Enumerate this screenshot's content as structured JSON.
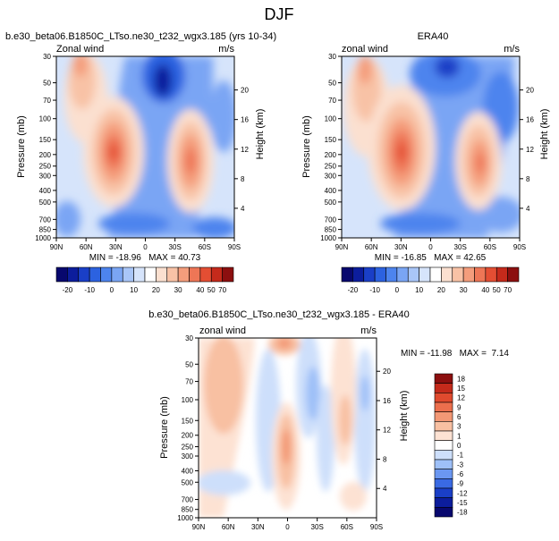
{
  "page": {
    "title": "DJF"
  },
  "colors": {
    "wind_scale": [
      "#08086e",
      "#0c1d9c",
      "#1a3fc7",
      "#2c62e0",
      "#4d84ee",
      "#7aa5f4",
      "#a9c6f8",
      "#d6e4fb",
      "#ffffff",
      "#fbe0d0",
      "#f8c2a6",
      "#f49d7c",
      "#ee7656",
      "#e44e33",
      "#c52a1b",
      "#8c0f0f"
    ],
    "diff_scale": [
      "#08086e",
      "#0c1d9c",
      "#1a3fc7",
      "#3a6ae3",
      "#6b97f1",
      "#9ec0f8",
      "#cddffb",
      "#ffffff",
      "#fde2d3",
      "#f8c0a2",
      "#f39875",
      "#ec6f4d",
      "#e04a2e",
      "#c42a1b",
      "#8c0f0f"
    ]
  },
  "chart_data": [
    {
      "type": "heatmap",
      "title": "b.e30_beta06.B1850C_LTso.ne30_t232_wgx3.185 (yrs 10-34)",
      "left_label": "Zonal wind",
      "right_label": "m/s",
      "ylabel": "Pressure (mb)",
      "y2label": "Height (km)",
      "pressure_ticks": [
        "30",
        "50",
        "70",
        "100",
        "150",
        "200",
        "250",
        "300",
        "400",
        "500",
        "700",
        "850",
        "1000"
      ],
      "height_ticks": [
        "4",
        "8",
        "12",
        "16",
        "20"
      ],
      "lat_ticks": [
        "90N",
        "60N",
        "30N",
        "0",
        "30S",
        "60S",
        "90S"
      ],
      "stats": "MIN = -18.96   MAX = 40.73",
      "colorbar_labels": [
        "-20",
        "-10",
        "0",
        "10",
        "20",
        "30",
        "40",
        "50",
        "70"
      ],
      "jets": [
        {
          "lat": -28,
          "pressure": 200,
          "max": 40.73
        },
        {
          "lat": 45,
          "pressure": 200,
          "max": 34
        },
        {
          "lat": 12,
          "pressure": 50,
          "min": -18.96
        }
      ]
    },
    {
      "type": "heatmap",
      "title": "ERA40",
      "left_label": "zonal wind",
      "right_label": "m/s",
      "ylabel": "Pressure (mb)",
      "y2label": "Height (km)",
      "pressure_ticks": [
        "30",
        "50",
        "70",
        "100",
        "150",
        "200",
        "250",
        "300",
        "400",
        "500",
        "700",
        "850",
        "1000"
      ],
      "height_ticks": [
        "4",
        "8",
        "12",
        "16",
        "20"
      ],
      "lat_ticks": [
        "90N",
        "60N",
        "30N",
        "0",
        "30S",
        "60S",
        "90S"
      ],
      "stats": "MIN = -16.85   MAX = 42.65",
      "colorbar_labels": [
        "-20",
        "-10",
        "0",
        "10",
        "20",
        "30",
        "40",
        "50",
        "70"
      ],
      "jets": [
        {
          "lat": -30,
          "pressure": 200,
          "max": 42.65
        },
        {
          "lat": 42,
          "pressure": 200,
          "max": 32
        },
        {
          "lat": 12,
          "pressure": 40,
          "min": -16.85
        }
      ]
    },
    {
      "type": "heatmap",
      "title": "b.e30_beta06.B1850C_LTso.ne30_t232_wgx3.185 - ERA40",
      "left_label": "zonal wind",
      "right_label": "m/s",
      "ylabel": "Pressure (mb)",
      "y2label": "Height (km)",
      "pressure_ticks": [
        "30",
        "50",
        "70",
        "100",
        "150",
        "200",
        "250",
        "300",
        "400",
        "500",
        "700",
        "850",
        "1000"
      ],
      "height_ticks": [
        "4",
        "8",
        "12",
        "16",
        "20"
      ],
      "lat_ticks": [
        "90N",
        "60N",
        "30N",
        "0",
        "30S",
        "60S",
        "90S"
      ],
      "stats": "MIN = -11.98   MAX =  7.14",
      "colorbar_labels": [
        "18",
        "15",
        "12",
        "9",
        "6",
        "3",
        "1",
        "0",
        "-1",
        "-3",
        "-6",
        "-9",
        "-12",
        "-15",
        "-18"
      ]
    }
  ]
}
